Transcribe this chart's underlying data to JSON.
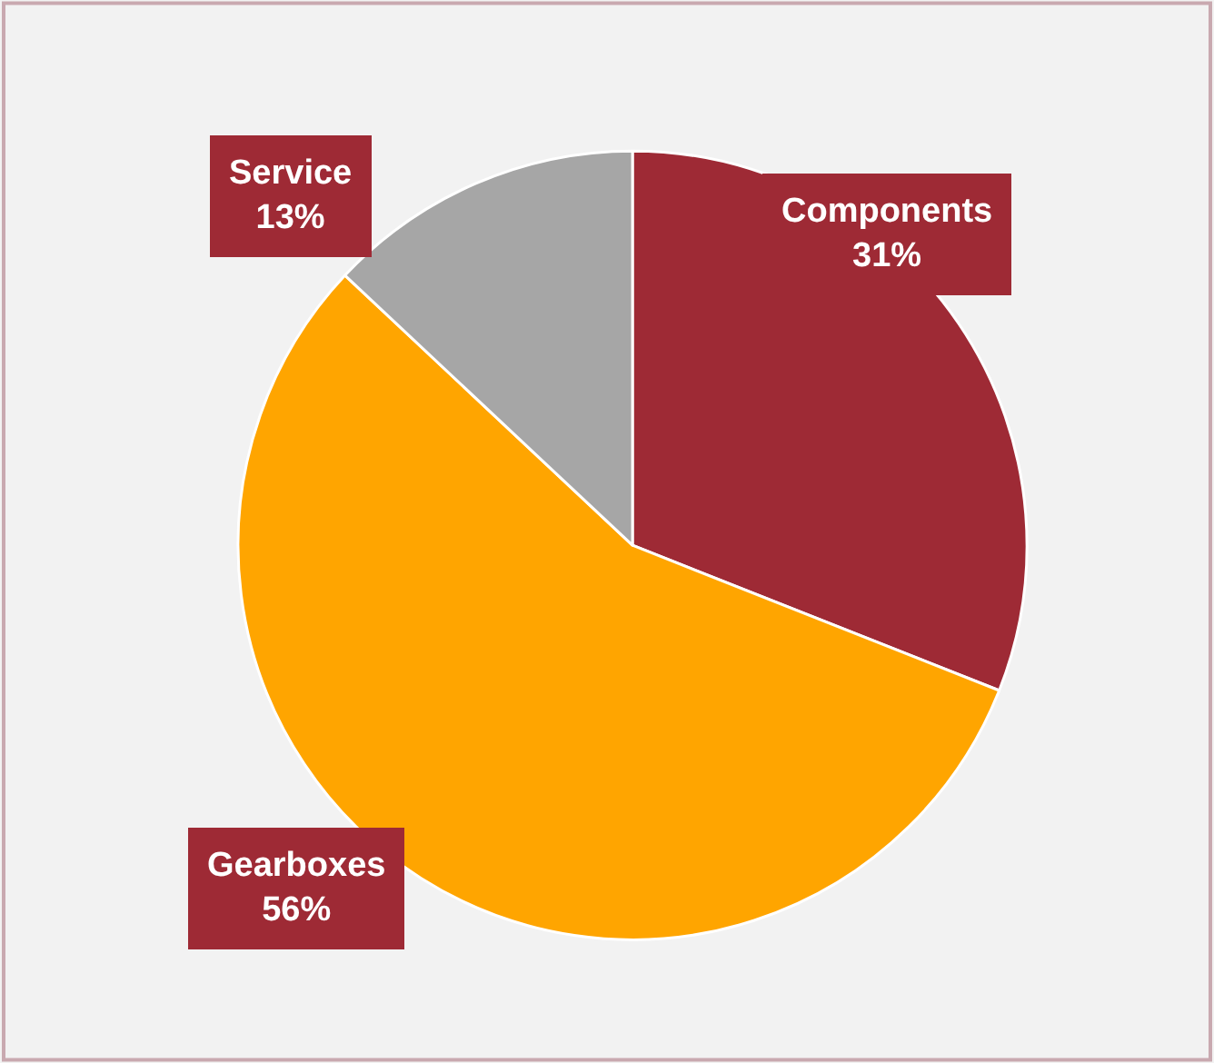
{
  "chart_data": {
    "type": "pie",
    "categories": [
      "Components",
      "Gearboxes",
      "Service"
    ],
    "values": [
      31,
      56,
      13
    ],
    "value_labels": [
      "31%",
      "56%",
      "13%"
    ],
    "colors": [
      "#9e2a35",
      "#ffa500",
      "#a6a6a6"
    ],
    "legend": false
  }
}
